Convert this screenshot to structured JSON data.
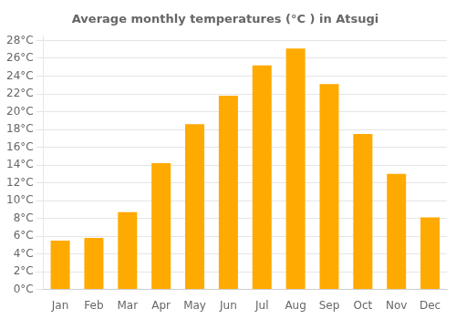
{
  "chart_data": {
    "type": "bar",
    "title": "Average monthly temperatures (°C ) in Atsugi",
    "categories": [
      "Jan",
      "Feb",
      "Mar",
      "Apr",
      "May",
      "Jun",
      "Jul",
      "Aug",
      "Sep",
      "Oct",
      "Nov",
      "Dec"
    ],
    "values": [
      5.5,
      5.8,
      8.7,
      14.2,
      18.6,
      21.8,
      25.2,
      27.1,
      23.1,
      17.5,
      13.0,
      8.1
    ],
    "color": "#FFAA00",
    "ylim": [
      0,
      28.5
    ],
    "yticks": [
      {
        "value": 0,
        "label": "0°C"
      },
      {
        "value": 2,
        "label": "2°C"
      },
      {
        "value": 4,
        "label": "4°C"
      },
      {
        "value": 6,
        "label": "6°C"
      },
      {
        "value": 8,
        "label": "8°C"
      },
      {
        "value": 10,
        "label": "10°C"
      },
      {
        "value": 12,
        "label": "12°C"
      },
      {
        "value": 14,
        "label": "14°C"
      },
      {
        "value": 16,
        "label": "16°C"
      },
      {
        "value": 18,
        "label": "18°C"
      },
      {
        "value": 20,
        "label": "20°C"
      },
      {
        "value": 22,
        "label": "22°C"
      },
      {
        "value": 24,
        "label": "24°C"
      },
      {
        "value": 26,
        "label": "26°C"
      },
      {
        "value": 28,
        "label": "28°C"
      }
    ],
    "grid": true
  }
}
